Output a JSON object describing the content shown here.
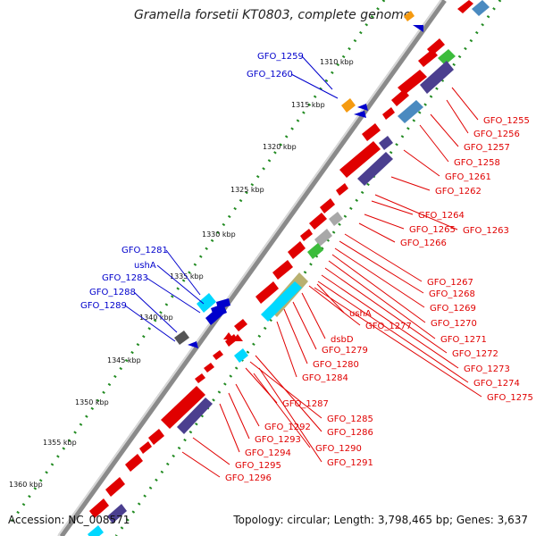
{
  "title": "Gramella forsetii KT0803, complete genome",
  "footer": {
    "accession": "Accession: NC_008571",
    "topology": "Topology: circular; Length: 3,798,465 bp; Genes: 3,637"
  },
  "colors": {
    "backbone": "#8a8a8a",
    "forward_gene": "#e00000",
    "reverse_gene": "#0000cc",
    "label_red": "#e00000",
    "label_blue": "#0000cc",
    "tick_dots": "#228b22",
    "cog_purple": "#4b3f8f",
    "cog_steelblue": "#4a8ac0",
    "cog_cyan": "#00d8ff",
    "cog_green": "#3cbc3c",
    "cog_olive": "#b8b070",
    "cog_gray": "#a8a8a8",
    "cog_orange": "#f59a10"
  },
  "kbp_ticks": [
    {
      "label": "1310 kbp"
    },
    {
      "label": "1315 kbp"
    },
    {
      "label": "1320 kbp"
    },
    {
      "label": "1325 kbp"
    },
    {
      "label": "1330 kbp"
    },
    {
      "label": "1335 kbp"
    },
    {
      "label": "1340 kbp"
    },
    {
      "label": "1345 kbp"
    },
    {
      "label": "1350 kbp"
    },
    {
      "label": "1355 kbp"
    },
    {
      "label": "1360 kbp"
    }
  ],
  "blue_labels": [
    "GFO_1259",
    "GFO_1260",
    "GFO_1281",
    "ushA",
    "GFO_1283",
    "GFO_1288",
    "GFO_1289"
  ],
  "red_labels": [
    "GFO_1255",
    "GFO_1256",
    "GFO_1257",
    "GFO_1258",
    "GFO_1261",
    "GFO_1262",
    "GFO_1264",
    "GFO_1263",
    "GFO_1265",
    "GFO_1266",
    "GFO_1267",
    "GFO_1268",
    "GFO_1269",
    "ushA",
    "GFO_1277",
    "GFO_1270",
    "dsbD",
    "GFO_1271",
    "GFO_1279",
    "GFO_1272",
    "GFO_1280",
    "GFO_1273",
    "GFO_1284",
    "GFO_1274",
    "GFO_1275",
    "GFO_1287",
    "GFO_1285",
    "GFO_1286",
    "GFO_1292",
    "GFO_1293",
    "GFO_1290",
    "GFO_1294",
    "GFO_1291",
    "GFO_1295",
    "GFO_1296"
  ]
}
